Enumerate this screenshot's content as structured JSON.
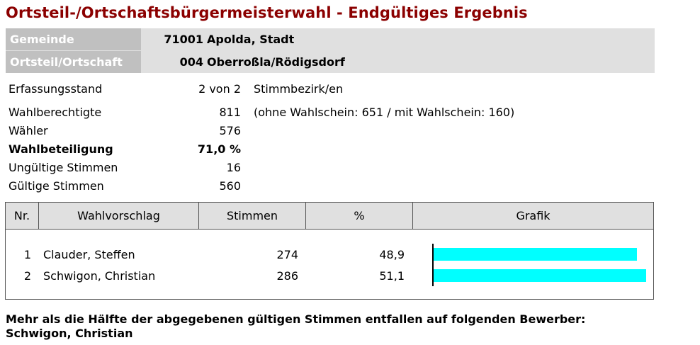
{
  "title": "Ortsteil-/Ortschaftsbürgermeisterwahl - Endgültiges Ergebnis",
  "header": {
    "gemeinde_label": "Gemeinde",
    "gemeinde_nr": "71001",
    "gemeinde_name": "Apolda, Stadt",
    "ortsteil_label": "Ortsteil/Ortschaft",
    "ortsteil_nr": "004",
    "ortsteil_name": "Oberroßla/Rödigsdorf"
  },
  "stats": {
    "erfassung_label": "Erfassungsstand",
    "erfassung_value": "2 von 2",
    "erfassung_note": "Stimmbezirk/en",
    "wahlberechtigte_label": "Wahlberechtigte",
    "wahlberechtigte_value": "811",
    "wahlberechtigte_note": "(ohne Wahlschein: 651 / mit Wahlschein: 160)",
    "waehler_label": "Wähler",
    "waehler_value": "576",
    "beteiligung_label": "Wahlbeteiligung",
    "beteiligung_value": "71,0 %",
    "ungueltig_label": "Ungültige Stimmen",
    "ungueltig_value": "16",
    "gueltig_label": "Gültige Stimmen",
    "gueltig_value": "560"
  },
  "table": {
    "headers": {
      "nr": "Nr.",
      "wahlvorschlag": "Wahlvorschlag",
      "stimmen": "Stimmen",
      "prozent": "%",
      "grafik": "Grafik"
    },
    "rows": [
      {
        "nr": "1",
        "name": "Clauder, Steffen",
        "stimmen": "274",
        "prozent": "48,9",
        "share": 48.9
      },
      {
        "nr": "2",
        "name": "Schwigon, Christian",
        "stimmen": "286",
        "prozent": "51,1",
        "share": 51.1
      }
    ],
    "bar_color": "#00ffff"
  },
  "footer": {
    "line1": "Mehr als die Hälfte der abgegebenen gültigen Stimmen entfallen auf folgenden Bewerber:",
    "line2": "Schwigon, Christian"
  },
  "colors": {
    "title": "#8b0000",
    "header_label_bg": "#c0c0c0",
    "header_bg": "#e0e0e0"
  }
}
